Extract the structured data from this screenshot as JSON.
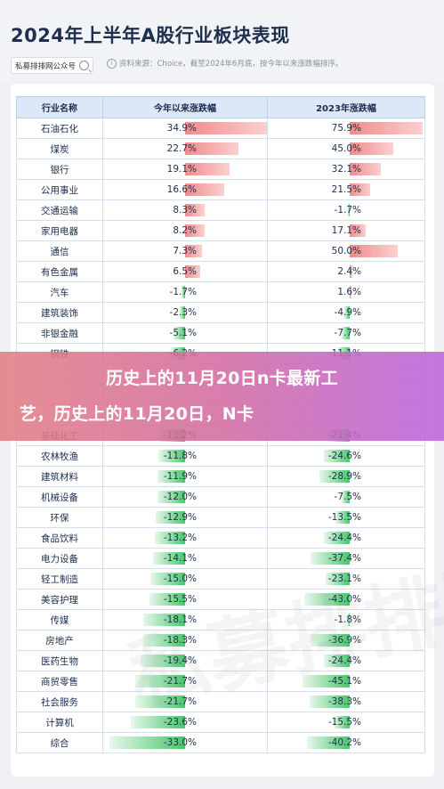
{
  "header": {
    "title": "2024年上半年A股行业板块表现",
    "brand": "私募排排网公众号",
    "source": "资料来源：Choice，截至2024年6月底，按今年以来涨跌幅排序。"
  },
  "banner": {
    "line1": "历史上的11月20日n卡最新工",
    "line2": "艺，历史上的11月20日，N卡"
  },
  "watermark": "私募排排网",
  "colors": {
    "positive_bar": "#f08b8b",
    "negative_bar": "#48c76a",
    "header_bg": "#dce7f7",
    "banner": "#d46ca0"
  },
  "chart_data": {
    "type": "table",
    "columns": [
      "行业名称",
      "今年以来涨跌幅",
      "2023年涨跌幅"
    ],
    "rows": [
      {
        "name": "石油石化",
        "ytd": 34.9,
        "y2023": 75.9
      },
      {
        "name": "煤炭",
        "ytd": 22.7,
        "y2023": 45.0
      },
      {
        "name": "银行",
        "ytd": 19.1,
        "y2023": 32.1
      },
      {
        "name": "公用事业",
        "ytd": 16.6,
        "y2023": 21.5
      },
      {
        "name": "交通运输",
        "ytd": 8.3,
        "y2023": -1.7
      },
      {
        "name": "家用电器",
        "ytd": 8.2,
        "y2023": 17.1
      },
      {
        "name": "通信",
        "ytd": 7.3,
        "y2023": 50.0
      },
      {
        "name": "有色金属",
        "ytd": 6.5,
        "y2023": 2.4
      },
      {
        "name": "汽车",
        "ytd": -1.7,
        "y2023": 1.6
      },
      {
        "name": "建筑装饰",
        "ytd": -2.3,
        "y2023": -4.9
      },
      {
        "name": "非银金融",
        "ytd": -5.1,
        "y2023": -7.7
      },
      {
        "name": "钢铁",
        "ytd": -6.2,
        "y2023": -11.1
      },
      {
        "name": "",
        "ytd": null,
        "y2023": null
      },
      {
        "name": "",
        "ytd": null,
        "y2023": null
      },
      {
        "name": "",
        "ytd": null,
        "y2023": null
      },
      {
        "name": "基础化工",
        "ytd": -11.2,
        "y2023": -21.4
      },
      {
        "name": "农林牧渔",
        "ytd": -11.8,
        "y2023": -24.6
      },
      {
        "name": "建筑材料",
        "ytd": -11.9,
        "y2023": -28.9
      },
      {
        "name": "机械设备",
        "ytd": -12.0,
        "y2023": -7.5
      },
      {
        "name": "环保",
        "ytd": -12.9,
        "y2023": -13.5
      },
      {
        "name": "食品饮料",
        "ytd": -13.2,
        "y2023": -24.4
      },
      {
        "name": "电力设备",
        "ytd": -14.1,
        "y2023": -37.4
      },
      {
        "name": "轻工制造",
        "ytd": -15.0,
        "y2023": -23.1
      },
      {
        "name": "美容护理",
        "ytd": -15.5,
        "y2023": -43.0
      },
      {
        "name": "传媒",
        "ytd": -18.1,
        "y2023": -1.8
      },
      {
        "name": "房地产",
        "ytd": -18.3,
        "y2023": -36.9
      },
      {
        "name": "医药生物",
        "ytd": -19.4,
        "y2023": -24.4
      },
      {
        "name": "商贸零售",
        "ytd": -21.7,
        "y2023": -45.1
      },
      {
        "name": "社会服务",
        "ytd": -21.7,
        "y2023": -38.3
      },
      {
        "name": "计算机",
        "ytd": -23.6,
        "y2023": -15.5
      },
      {
        "name": "综合",
        "ytd": -33.0,
        "y2023": -40.2
      }
    ]
  }
}
